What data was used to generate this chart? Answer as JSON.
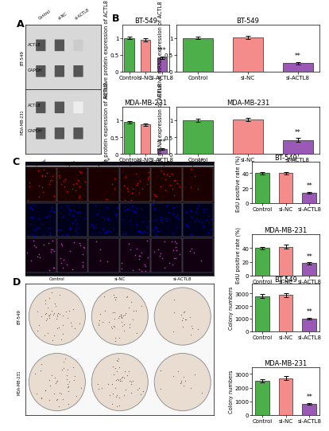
{
  "panel_A": {
    "title_BT549": "BT-549",
    "title_MDA": "MDA-MB-231",
    "ylabel": "Relative protein expression of ACTL8",
    "categories": [
      "Control",
      "si-NC",
      "si-ACTL8"
    ],
    "values_BT549": [
      1.0,
      0.95,
      0.42
    ],
    "values_MDA": [
      0.95,
      0.88,
      0.15
    ],
    "errors_BT549": [
      0.04,
      0.04,
      0.04
    ],
    "errors_MDA": [
      0.04,
      0.04,
      0.03
    ],
    "colors": [
      "#4daf4a",
      "#f48c8c",
      "#9b59b6"
    ],
    "ylim": [
      0.0,
      1.4
    ],
    "yticks": [
      0.0,
      0.5,
      1.0
    ],
    "sig_BT549": "***",
    "sig_MDA": "***"
  },
  "panel_B": {
    "title_BT549": "BT-549",
    "title_MDA": "MDA-MB-231",
    "ylabel": "Relative mRNA expression of ACTL8",
    "categories": [
      "Control",
      "si-NC",
      "si-ACTL8"
    ],
    "values_BT549": [
      1.0,
      1.02,
      0.25
    ],
    "values_MDA": [
      1.0,
      1.03,
      0.42
    ],
    "errors_BT549": [
      0.04,
      0.05,
      0.04
    ],
    "errors_MDA": [
      0.04,
      0.05,
      0.05
    ],
    "colors": [
      "#4daf4a",
      "#f48c8c",
      "#9b59b6"
    ],
    "ylim": [
      0.0,
      1.4
    ],
    "yticks": [
      0.0,
      0.5,
      1.0
    ],
    "sig_BT549": "**",
    "sig_MDA": "**"
  },
  "panel_C": {
    "title_BT549": "BT-549",
    "title_MDA": "MDA-MB-231",
    "ylabel_BT549": "EdU positive rate (%)",
    "ylabel_MDA": "EdU positive rate (%)",
    "categories": [
      "Control",
      "si-NC",
      "si-ACTL8"
    ],
    "values_BT549": [
      40,
      40,
      14
    ],
    "values_MDA": [
      40,
      42,
      18
    ],
    "errors_BT549": [
      2.0,
      2.0,
      1.5
    ],
    "errors_MDA": [
      2.0,
      2.5,
      1.5
    ],
    "colors": [
      "#4daf4a",
      "#f48c8c",
      "#9b59b6"
    ],
    "ylim_BT549": [
      0,
      55
    ],
    "ylim_MDA": [
      0,
      60
    ],
    "yticks_BT549": [
      0,
      20,
      40
    ],
    "yticks_MDA": [
      0,
      20,
      40
    ],
    "sig_BT549": "**",
    "sig_MDA": "**"
  },
  "panel_D": {
    "title_BT549": "BT-549",
    "title_MDA": "MDA-MB-231",
    "ylabel_BT549": "Colony numbers",
    "ylabel_MDA": "Colony numbers",
    "categories": [
      "Control",
      "si-NC",
      "si-ACTL8"
    ],
    "values_BT549": [
      2800,
      2900,
      1000
    ],
    "values_MDA": [
      2500,
      2700,
      800
    ],
    "errors_BT549": [
      150,
      160,
      80
    ],
    "errors_MDA": [
      140,
      150,
      70
    ],
    "colors": [
      "#4daf4a",
      "#f48c8c",
      "#9b59b6"
    ],
    "ylim_BT549": [
      0,
      3800
    ],
    "ylim_MDA": [
      0,
      3500
    ],
    "yticks_BT549": [
      0,
      1000,
      2000,
      3000
    ],
    "yticks_MDA": [
      0,
      1000,
      2000,
      3000
    ],
    "sig_BT549": "**",
    "sig_MDA": "**"
  },
  "background_color": "#ffffff",
  "tick_fontsize": 5.0,
  "title_fontsize": 6.0,
  "ylabel_fontsize": 4.8,
  "bar_width": 0.6,
  "sig_fontsize": 5.5,
  "label_fontsize": 9
}
